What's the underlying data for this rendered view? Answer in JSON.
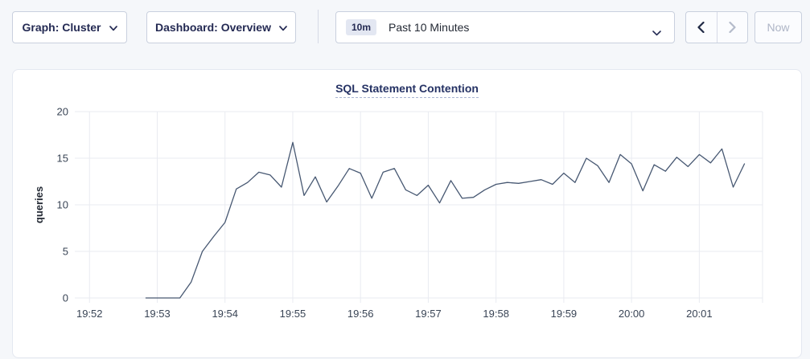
{
  "toolbar": {
    "graph_dropdown": {
      "label": "Graph: Cluster"
    },
    "dashboard_dropdown": {
      "label": "Dashboard: Overview"
    },
    "time_range": {
      "badge": "10m",
      "label": "Past 10 Minutes"
    },
    "prev_button": "previous-interval",
    "next_button": "next-interval",
    "now_label": "Now"
  },
  "chart_data": {
    "type": "line",
    "title": "SQL Statement Contention",
    "xlabel": "",
    "ylabel": "queries",
    "ylim": [
      0,
      20
    ],
    "y_ticks": [
      0,
      5,
      10,
      15,
      20
    ],
    "x_ticks": [
      "19:52",
      "19:53",
      "19:54",
      "19:55",
      "19:56",
      "19:57",
      "19:58",
      "19:59",
      "20:00",
      "20:01"
    ],
    "xlim": [
      "19:51:47",
      "20:01:56"
    ],
    "grid": true,
    "legend": "none",
    "line_color": "#475872",
    "grid_color": "#e9ebf1",
    "x": [
      "19:52:50",
      "19:53:00",
      "19:53:10",
      "19:53:20",
      "19:53:30",
      "19:53:40",
      "19:53:50",
      "19:54:00",
      "19:54:10",
      "19:54:20",
      "19:54:30",
      "19:54:40",
      "19:54:50",
      "19:55:00",
      "19:55:10",
      "19:55:20",
      "19:55:30",
      "19:55:40",
      "19:55:50",
      "19:56:00",
      "19:56:10",
      "19:56:20",
      "19:56:30",
      "19:56:40",
      "19:56:50",
      "19:57:00",
      "19:57:10",
      "19:57:20",
      "19:57:30",
      "19:57:40",
      "19:57:50",
      "19:58:00",
      "19:58:10",
      "19:58:20",
      "19:58:30",
      "19:58:40",
      "19:58:50",
      "19:59:00",
      "19:59:10",
      "19:59:20",
      "19:59:30",
      "19:59:40",
      "19:59:50",
      "20:00:00",
      "20:00:10",
      "20:00:20",
      "20:00:30",
      "20:00:40",
      "20:00:50",
      "20:01:00",
      "20:01:10",
      "20:01:20",
      "20:01:30",
      "20:01:40"
    ],
    "values": [
      0,
      0,
      0,
      0,
      1.7,
      5.0,
      6.6,
      8.1,
      11.7,
      12.4,
      13.5,
      13.2,
      11.9,
      16.7,
      11.0,
      13.0,
      10.3,
      12.0,
      13.9,
      13.4,
      10.7,
      13.5,
      13.9,
      11.6,
      11.0,
      12.1,
      10.2,
      12.6,
      10.7,
      10.8,
      11.6,
      12.2,
      12.4,
      12.3,
      12.5,
      12.7,
      12.2,
      13.4,
      12.4,
      15.0,
      14.2,
      12.4,
      15.4,
      14.4,
      11.5,
      14.3,
      13.6,
      15.1,
      14.1,
      15.4,
      14.5,
      16.0,
      11.9,
      14.4
    ]
  }
}
